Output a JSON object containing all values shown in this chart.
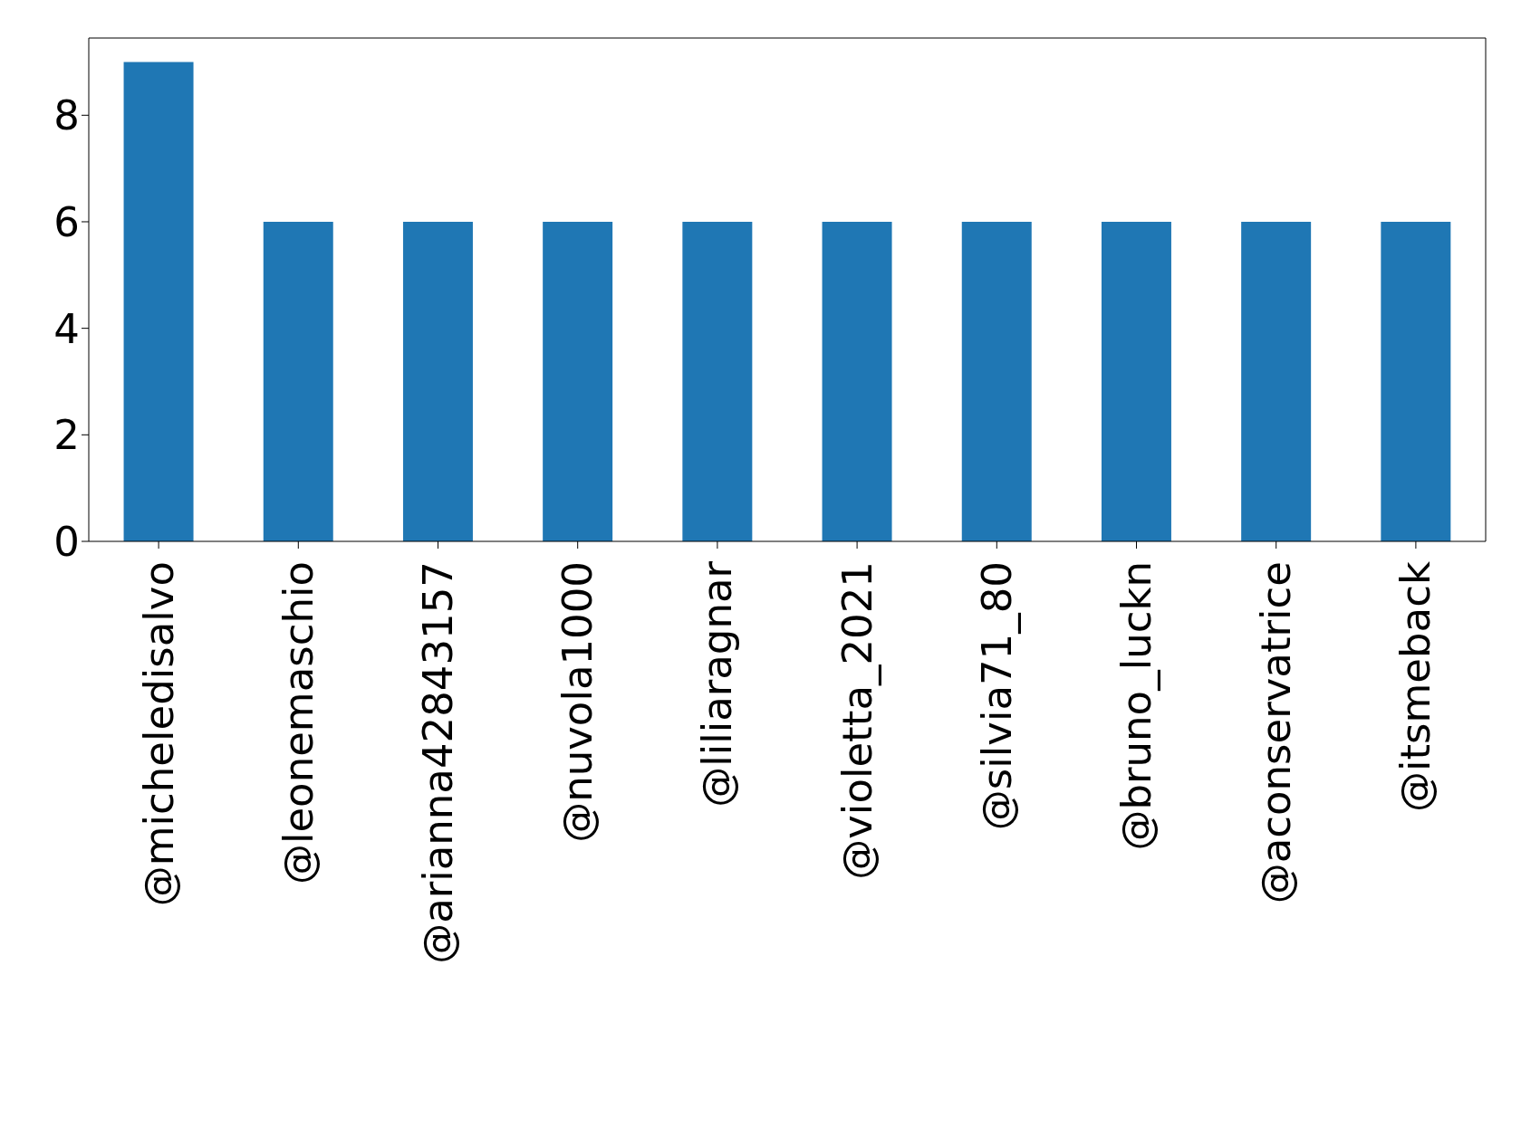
{
  "chart_data": {
    "type": "bar",
    "categories": [
      "@micheledisalvo",
      "@leonemaschio",
      "@arianna42843157",
      "@nuvola1000",
      "@liliaragnar",
      "@violetta_2021",
      "@silvia71_80",
      "@bruno_luckn",
      "@aconservatrice",
      "@itsmeback"
    ],
    "values": [
      9,
      6,
      6,
      6,
      6,
      6,
      6,
      6,
      6,
      6
    ],
    "color": "#1f77b4",
    "ylim": [
      0,
      9.45
    ],
    "yticks": [
      0,
      2,
      4,
      6,
      8
    ]
  }
}
